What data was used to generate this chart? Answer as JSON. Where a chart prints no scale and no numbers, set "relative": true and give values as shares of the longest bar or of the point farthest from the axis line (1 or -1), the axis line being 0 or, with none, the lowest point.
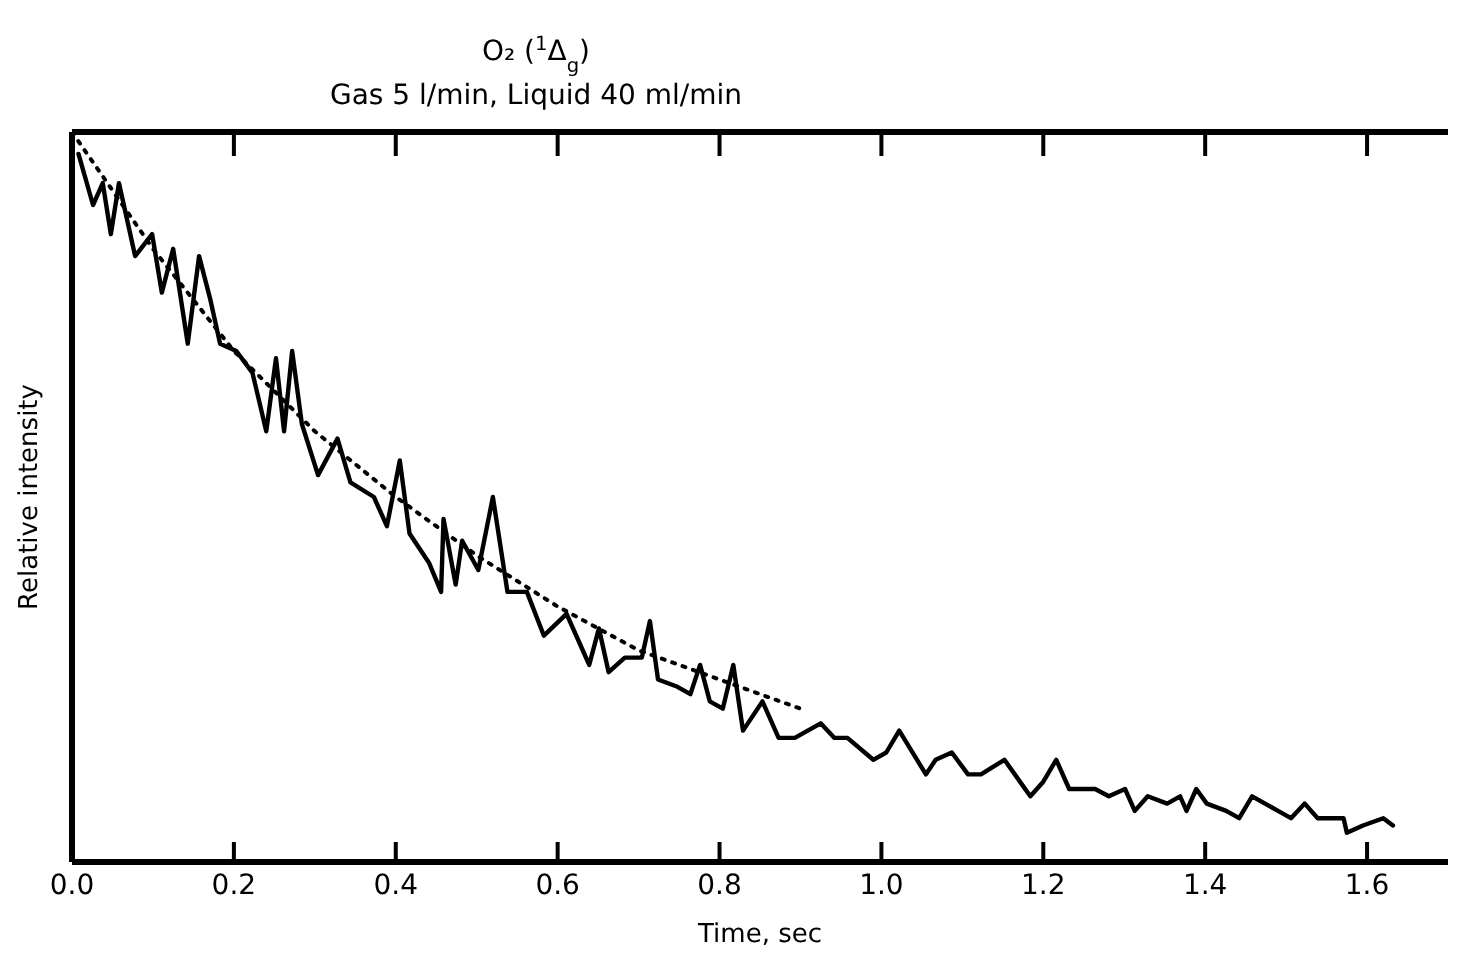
{
  "chart_data": {
    "type": "line",
    "title": "O₂ ($^{1}$Δ$_{g}$)",
    "subtitle": "Gas 5 l/min, Liquid 40 ml/min",
    "xlabel": "Time, sec",
    "ylabel": "Relative intensity",
    "relative": true,
    "tick_labels": "x",
    "marker": "none",
    "xlim": [
      0,
      1.7
    ],
    "xticks": [
      {
        "value": 0,
        "label": "0.0"
      },
      {
        "value": 0.2,
        "label": "0.2"
      },
      {
        "value": 0.4,
        "label": "0.4"
      },
      {
        "value": 0.6,
        "label": "0.6"
      },
      {
        "value": 0.8,
        "label": "0.8"
      },
      {
        "value": 1.0,
        "label": "1.0"
      },
      {
        "value": 1.2,
        "label": "1.2"
      },
      {
        "value": 1.4,
        "label": "1.4"
      },
      {
        "value": 1.6,
        "label": "1.6"
      }
    ],
    "series": [
      {
        "color": "#000000",
        "line_style": "solid",
        "x": [
          0.008,
          0.026,
          0.038,
          0.048,
          0.058,
          0.078,
          0.099,
          0.111,
          0.125,
          0.143,
          0.157,
          0.171,
          0.183,
          0.203,
          0.223,
          0.24,
          0.252,
          0.262,
          0.272,
          0.284,
          0.304,
          0.328,
          0.344,
          0.373,
          0.389,
          0.405,
          0.417,
          0.441,
          0.456,
          0.459,
          0.474,
          0.482,
          0.502,
          0.52,
          0.538,
          0.562,
          0.583,
          0.611,
          0.627,
          0.639,
          0.651,
          0.663,
          0.683,
          0.704,
          0.714,
          0.724,
          0.748,
          0.764,
          0.776,
          0.788,
          0.804,
          0.817,
          0.829,
          0.853,
          0.873,
          0.893,
          0.925,
          0.942,
          0.958,
          0.99,
          1.006,
          1.022,
          1.055,
          1.067,
          1.087,
          1.107,
          1.123,
          1.152,
          1.184,
          1.2,
          1.216,
          1.232,
          1.264,
          1.281,
          1.301,
          1.313,
          1.329,
          1.353,
          1.369,
          1.377,
          1.389,
          1.402,
          1.426,
          1.442,
          1.458,
          1.49,
          1.506,
          1.523,
          1.539,
          1.571,
          1.575,
          1.595,
          1.62,
          1.632
        ],
        "values": [
          0.97,
          0.9,
          0.93,
          0.86,
          0.93,
          0.83,
          0.86,
          0.78,
          0.84,
          0.71,
          0.83,
          0.77,
          0.71,
          0.7,
          0.67,
          0.59,
          0.69,
          0.59,
          0.7,
          0.6,
          0.53,
          0.58,
          0.52,
          0.5,
          0.46,
          0.55,
          0.45,
          0.41,
          0.37,
          0.47,
          0.38,
          0.44,
          0.4,
          0.5,
          0.37,
          0.37,
          0.31,
          0.34,
          0.3,
          0.27,
          0.32,
          0.26,
          0.28,
          0.28,
          0.33,
          0.25,
          0.24,
          0.23,
          0.27,
          0.22,
          0.21,
          0.27,
          0.18,
          0.22,
          0.17,
          0.17,
          0.19,
          0.17,
          0.17,
          0.14,
          0.15,
          0.18,
          0.12,
          0.14,
          0.15,
          0.12,
          0.12,
          0.14,
          0.09,
          0.11,
          0.14,
          0.1,
          0.1,
          0.09,
          0.1,
          0.07,
          0.09,
          0.08,
          0.09,
          0.07,
          0.1,
          0.08,
          0.07,
          0.06,
          0.09,
          0.07,
          0.06,
          0.08,
          0.06,
          0.06,
          0.04,
          0.05,
          0.06,
          0.05
        ]
      },
      {
        "color": "#000000",
        "line_style": "dotted",
        "x": [
          0,
          0.1,
          0.2,
          0.3,
          0.4,
          0.5,
          0.6,
          0.7,
          0.8,
          0.9
        ],
        "values": [
          1.0,
          0.84,
          0.7,
          0.59,
          0.5,
          0.42,
          0.35,
          0.29,
          0.25,
          0.21
        ]
      }
    ]
  }
}
